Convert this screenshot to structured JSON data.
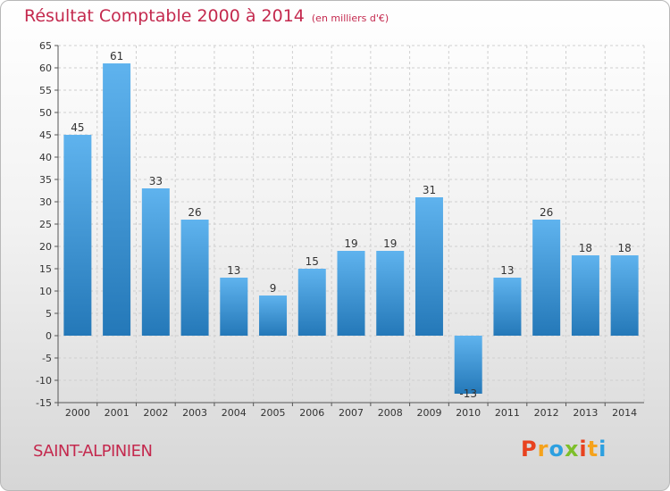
{
  "chart_data": {
    "type": "bar",
    "title": "Résultat Comptable 2000 à 2014",
    "unit": "(en milliers d'€)",
    "categories": [
      "2000",
      "2001",
      "2002",
      "2003",
      "2004",
      "2005",
      "2006",
      "2007",
      "2008",
      "2009",
      "2010",
      "2011",
      "2012",
      "2013",
      "2014"
    ],
    "values": [
      45,
      61,
      33,
      26,
      13,
      9,
      15,
      19,
      19,
      31,
      -13,
      13,
      26,
      18,
      18
    ],
    "value_labels": [
      "45",
      "61",
      "33",
      "26",
      "13",
      "9",
      "15",
      "19",
      "19",
      "31",
      "-13",
      "13",
      "26",
      "18",
      "18"
    ],
    "ylim": [
      -15,
      65
    ],
    "yticks": [
      -15,
      -10,
      -5,
      0,
      5,
      10,
      15,
      20,
      25,
      30,
      35,
      40,
      45,
      50,
      55,
      60,
      65
    ],
    "grid": true,
    "xlabel": "",
    "ylabel": ""
  },
  "footer": {
    "place": "SAINT-ALPINIEN",
    "logo": [
      "P",
      "r",
      "o",
      "x",
      "i",
      "t",
      "i"
    ]
  },
  "colors": {
    "title": "#c4294e",
    "bar_top": "#5fb3ee",
    "bar_bottom": "#2478b8",
    "grid": "#cfcfcf",
    "logo": [
      "#e8421f",
      "#f5a21c",
      "#2da0e0",
      "#7dbf2a",
      "#e8421f",
      "#f5a21c",
      "#2da0e0"
    ]
  }
}
